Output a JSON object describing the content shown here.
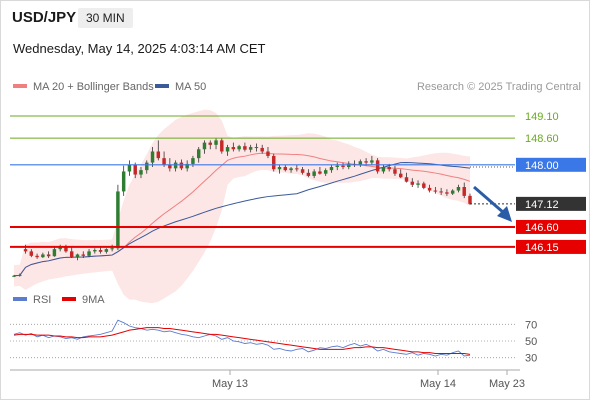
{
  "header": {
    "symbol": "USD/JPY",
    "timeframe": "30 MIN",
    "datetime": "Wednesday, May 14, 2025 4:03:14 AM CET"
  },
  "legend": {
    "ma20_label": "MA 20 + Bollinger Bands",
    "ma50_label": "MA 50",
    "credit": "Research © 2025 Trading Central",
    "ma20_color": "#f08080",
    "ma50_color": "#3a5a9a"
  },
  "chart_data": [
    {
      "type": "candlestick",
      "title": "",
      "ylim": [
        145.45,
        149.55
      ],
      "x_ticks": [
        "May 13",
        "May 14",
        "May 23"
      ],
      "grid": false,
      "levels": [
        {
          "value": 149.1,
          "label": "149.10",
          "kind": "resistance",
          "color": "#6aaa1f"
        },
        {
          "value": 148.6,
          "label": "148.60",
          "kind": "resistance",
          "color": "#6aaa1f"
        },
        {
          "value": 148.0,
          "label": "148.00",
          "kind": "pivot",
          "color": "#3b78e7"
        },
        {
          "value": 147.12,
          "label": "147.12",
          "kind": "last-price",
          "color": "#333333"
        },
        {
          "value": 146.6,
          "label": "146.60",
          "kind": "support",
          "color": "#e60000"
        },
        {
          "value": 146.15,
          "label": "146.15",
          "kind": "support",
          "color": "#e60000"
        }
      ],
      "forecast_direction": "down",
      "candles": [
        [
          145.5,
          145.52,
          145.47,
          145.5
        ],
        [
          145.5,
          145.55,
          145.48,
          145.52
        ],
        [
          146.1,
          146.2,
          146.0,
          146.05
        ],
        [
          146.05,
          146.1,
          145.92,
          145.95
        ],
        [
          145.95,
          146.0,
          145.88,
          145.92
        ],
        [
          145.92,
          146.02,
          145.9,
          145.98
        ],
        [
          145.98,
          146.05,
          145.9,
          145.94
        ],
        [
          145.94,
          146.15,
          145.93,
          146.1
        ],
        [
          146.1,
          146.2,
          146.05,
          146.15
        ],
        [
          146.15,
          146.2,
          146.02,
          146.05
        ],
        [
          146.05,
          146.15,
          145.9,
          145.92
        ],
        [
          145.92,
          146.0,
          145.85,
          145.98
        ],
        [
          145.98,
          146.05,
          145.9,
          145.95
        ],
        [
          145.95,
          146.1,
          145.92,
          146.05
        ],
        [
          146.05,
          146.12,
          146.0,
          146.08
        ],
        [
          146.08,
          146.15,
          146.0,
          146.04
        ],
        [
          146.04,
          146.12,
          146.0,
          146.1
        ],
        [
          146.1,
          146.2,
          146.05,
          146.12
        ],
        [
          146.12,
          147.55,
          146.08,
          147.4
        ],
        [
          147.4,
          147.98,
          147.3,
          147.85
        ],
        [
          147.85,
          148.1,
          147.75,
          148.0
        ],
        [
          148.0,
          148.05,
          147.7,
          147.78
        ],
        [
          147.78,
          147.95,
          147.7,
          147.88
        ],
        [
          147.88,
          148.1,
          147.8,
          148.05
        ],
        [
          148.05,
          148.4,
          147.95,
          148.3
        ],
        [
          148.3,
          148.55,
          148.1,
          148.15
        ],
        [
          148.15,
          148.3,
          147.95,
          148.0
        ],
        [
          148.0,
          148.15,
          147.85,
          147.92
        ],
        [
          147.92,
          148.1,
          147.85,
          148.05
        ],
        [
          148.05,
          148.12,
          147.88,
          147.92
        ],
        [
          147.92,
          148.1,
          147.85,
          148.02
        ],
        [
          148.02,
          148.2,
          147.95,
          148.15
        ],
        [
          148.15,
          148.4,
          148.05,
          148.35
        ],
        [
          148.35,
          148.55,
          148.25,
          148.5
        ],
        [
          148.5,
          148.55,
          148.35,
          148.45
        ],
        [
          148.45,
          148.6,
          148.35,
          148.55
        ],
        [
          148.55,
          148.6,
          148.25,
          148.3
        ],
        [
          148.3,
          148.45,
          148.2,
          148.4
        ],
        [
          148.4,
          148.5,
          148.3,
          148.35
        ],
        [
          148.35,
          148.45,
          148.3,
          148.42
        ],
        [
          148.42,
          148.5,
          148.3,
          148.34
        ],
        [
          148.34,
          148.45,
          148.28,
          148.4
        ],
        [
          148.4,
          148.48,
          148.3,
          148.38
        ],
        [
          148.38,
          148.45,
          148.25,
          148.3
        ],
        [
          148.3,
          148.4,
          148.15,
          148.2
        ],
        [
          148.2,
          148.25,
          147.85,
          147.9
        ],
        [
          147.9,
          148.0,
          147.8,
          147.95
        ],
        [
          147.95,
          148.0,
          147.85,
          147.88
        ],
        [
          147.88,
          147.95,
          147.82,
          147.92
        ],
        [
          147.92,
          148.0,
          147.85,
          147.9
        ],
        [
          147.9,
          147.95,
          147.78,
          147.82
        ],
        [
          147.82,
          147.9,
          147.72,
          147.75
        ],
        [
          147.75,
          147.9,
          147.7,
          147.85
        ],
        [
          147.85,
          147.95,
          147.78,
          147.8
        ],
        [
          147.8,
          147.92,
          147.75,
          147.88
        ],
        [
          147.88,
          148.0,
          147.82,
          147.95
        ],
        [
          147.95,
          148.05,
          147.88,
          147.98
        ],
        [
          147.98,
          148.05,
          147.9,
          147.95
        ],
        [
          147.95,
          148.08,
          147.9,
          148.02
        ],
        [
          148.02,
          148.1,
          147.95,
          148.0
        ],
        [
          148.0,
          148.12,
          147.95,
          148.08
        ],
        [
          148.08,
          148.15,
          147.98,
          148.05
        ],
        [
          148.05,
          148.2,
          148.0,
          148.1
        ],
        [
          148.1,
          148.15,
          147.8,
          147.85
        ],
        [
          147.85,
          148.0,
          147.8,
          147.95
        ],
        [
          147.95,
          148.02,
          147.85,
          147.9
        ],
        [
          147.9,
          147.98,
          147.75,
          147.8
        ],
        [
          147.8,
          147.9,
          147.7,
          147.72
        ],
        [
          147.72,
          147.82,
          147.6,
          147.62
        ],
        [
          147.62,
          147.7,
          147.5,
          147.55
        ],
        [
          147.55,
          147.65,
          147.48,
          147.58
        ],
        [
          147.58,
          147.62,
          147.45,
          147.48
        ],
        [
          147.48,
          147.55,
          147.38,
          147.42
        ],
        [
          147.42,
          147.5,
          147.35,
          147.4
        ],
        [
          147.4,
          147.48,
          147.32,
          147.38
        ],
        [
          147.38,
          147.45,
          147.3,
          147.35
        ],
        [
          147.35,
          147.45,
          147.32,
          147.42
        ],
        [
          147.42,
          147.55,
          147.38,
          147.5
        ],
        [
          147.5,
          147.6,
          147.25,
          147.3
        ],
        [
          147.3,
          147.35,
          147.1,
          147.12
        ]
      ]
    },
    {
      "type": "line",
      "title": "",
      "ylim": [
        20,
        80
      ],
      "y_ticks": [
        70,
        50,
        30
      ],
      "series": [
        {
          "name": "RSI",
          "color": "#5b7ccf",
          "values": [
            58,
            60,
            57,
            59,
            55,
            57,
            54,
            56,
            55,
            53,
            54,
            52,
            55,
            56,
            57,
            58,
            60,
            62,
            75,
            72,
            68,
            66,
            65,
            63,
            64,
            63,
            61,
            62,
            60,
            58,
            57,
            55,
            54,
            56,
            58,
            56,
            52,
            54,
            50,
            49,
            47,
            48,
            46,
            47,
            45,
            40,
            41,
            39,
            38,
            40,
            41,
            37,
            39,
            42,
            41,
            43,
            44,
            42,
            45,
            47,
            44,
            46,
            43,
            38,
            40,
            37,
            36,
            35,
            34,
            36,
            33,
            35,
            34,
            32,
            34,
            33,
            36,
            38,
            32,
            33
          ]
        },
        {
          "name": "9MA",
          "color": "#e60000",
          "values": [
            57,
            58,
            58,
            58,
            57,
            57,
            57,
            56,
            56,
            55,
            55,
            54,
            54,
            55,
            55,
            55,
            56,
            57,
            59,
            61,
            63,
            64,
            65,
            66,
            66,
            66,
            65,
            65,
            64,
            63,
            62,
            61,
            60,
            59,
            58,
            58,
            57,
            56,
            55,
            54,
            53,
            52,
            51,
            50,
            49,
            48,
            47,
            46,
            45,
            44,
            43,
            42,
            41,
            40,
            40,
            40,
            40,
            40,
            41,
            42,
            42,
            43,
            43,
            42,
            42,
            41,
            40,
            39,
            38,
            37,
            37,
            36,
            36,
            35,
            35,
            35,
            35,
            35,
            35,
            34
          ]
        }
      ]
    }
  ]
}
